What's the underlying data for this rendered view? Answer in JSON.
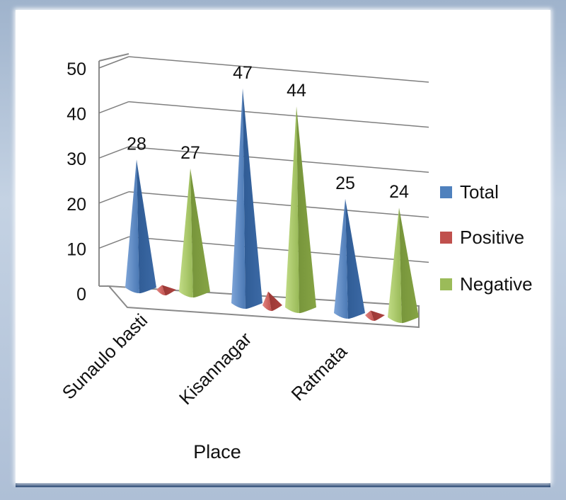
{
  "chart_data": {
    "type": "bar",
    "style": "3d-cone",
    "categories": [
      "Sunaulo basti",
      "Kisannagar",
      "Ratmata"
    ],
    "series": [
      {
        "name": "Total",
        "values": [
          28,
          47,
          25
        ],
        "color": "#4f81bd"
      },
      {
        "name": "Positive",
        "values": [
          1,
          3,
          1
        ],
        "color": "#c0504d"
      },
      {
        "name": "Negative",
        "values": [
          27,
          44,
          24
        ],
        "color": "#9bbb59"
      }
    ],
    "data_labels": [
      {
        "category": "Sunaulo basti",
        "series": "Total",
        "text": "28"
      },
      {
        "category": "Sunaulo basti",
        "series": "Negative",
        "text": "27"
      },
      {
        "category": "Kisannagar",
        "series": "Total",
        "text": "47"
      },
      {
        "category": "Kisannagar",
        "series": "Negative",
        "text": "44"
      },
      {
        "category": "Ratmata",
        "series": "Total",
        "text": "25"
      },
      {
        "category": "Ratmata",
        "series": "Negative",
        "text": "24"
      }
    ],
    "y_ticks": [
      "0",
      "10",
      "20",
      "30",
      "40",
      "50"
    ],
    "ylim": [
      0,
      50
    ],
    "xlabel": "Place",
    "ylabel": "",
    "grid": true,
    "legend_position": "right"
  }
}
